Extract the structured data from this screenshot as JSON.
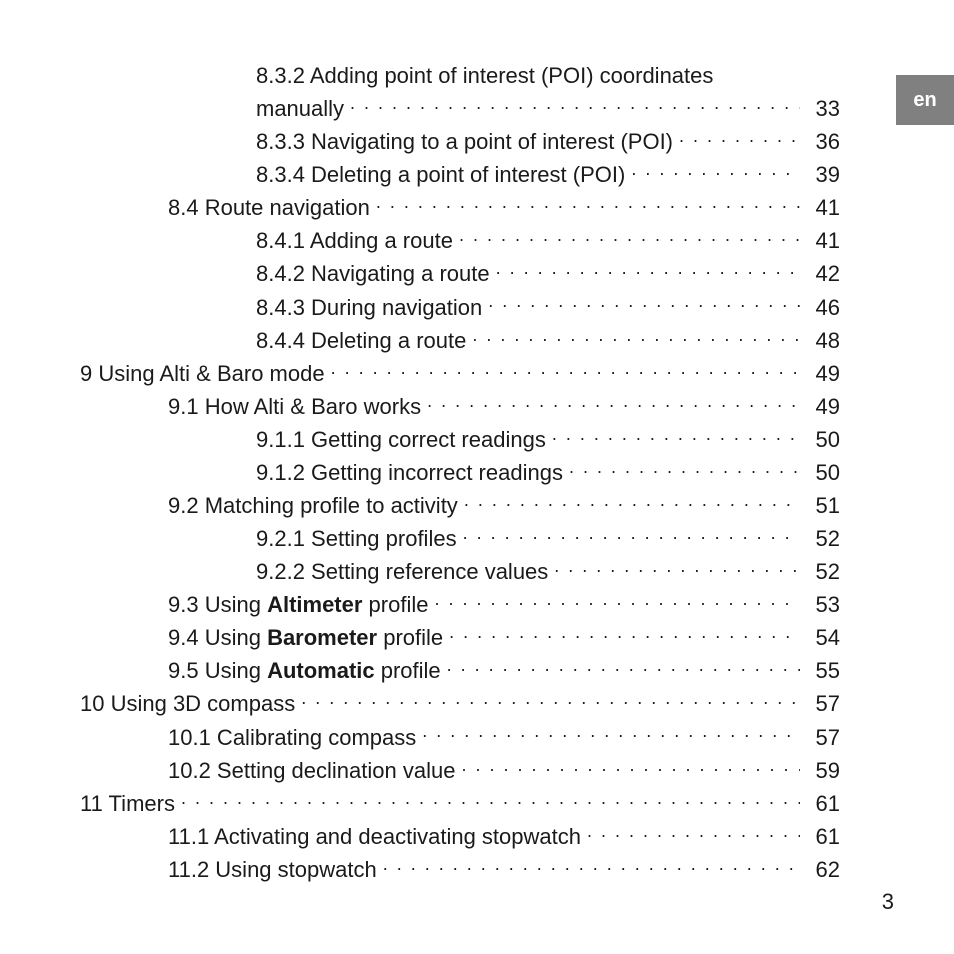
{
  "language_tab": "en",
  "page_number": "3",
  "toc": {
    "entries": [
      {
        "indent": 2,
        "label_html": "8.3.2 Adding point of interest (POI) coordinates",
        "page": "",
        "wrap": true
      },
      {
        "indent": 2,
        "continuation": true,
        "label_html": "manually",
        "page": "33"
      },
      {
        "indent": 2,
        "label_html": "8.3.3 Navigating to a point of interest (POI)",
        "page": "36"
      },
      {
        "indent": 2,
        "label_html": "8.3.4 Deleting a point of interest (POI)",
        "page": "39"
      },
      {
        "indent": 1,
        "label_html": "8.4 Route navigation",
        "page": "41"
      },
      {
        "indent": 2,
        "label_html": "8.4.1 Adding a route",
        "page": "41"
      },
      {
        "indent": 2,
        "label_html": "8.4.2 Navigating a route",
        "page": "42"
      },
      {
        "indent": 2,
        "label_html": "8.4.3 During navigation",
        "page": "46"
      },
      {
        "indent": 2,
        "label_html": "8.4.4 Deleting a route",
        "page": "48"
      },
      {
        "indent": 0,
        "label_html": "9 Using Alti & Baro mode",
        "page": "49"
      },
      {
        "indent": 1,
        "label_html": "9.1 How Alti & Baro works",
        "page": "49"
      },
      {
        "indent": 2,
        "label_html": "9.1.1 Getting correct readings",
        "page": "50"
      },
      {
        "indent": 2,
        "label_html": "9.1.2 Getting incorrect readings",
        "page": "50"
      },
      {
        "indent": 1,
        "label_html": "9.2 Matching profile to activity",
        "page": "51"
      },
      {
        "indent": 2,
        "label_html": "9.2.1 Setting profiles",
        "page": "52"
      },
      {
        "indent": 2,
        "label_html": "9.2.2 Setting reference values",
        "page": "52"
      },
      {
        "indent": 1,
        "label_html": "9.3 Using <b>Altimeter</b> profile",
        "page": "53"
      },
      {
        "indent": 1,
        "label_html": "9.4 Using <b>Barometer</b> profile",
        "page": "54"
      },
      {
        "indent": 1,
        "label_html": "9.5 Using <b>Automatic</b> profile",
        "page": "55"
      },
      {
        "indent": 0,
        "label_html": "10 Using 3D compass",
        "page": "57"
      },
      {
        "indent": 1,
        "label_html": "10.1 Calibrating compass",
        "page": "57"
      },
      {
        "indent": 1,
        "label_html": "10.2 Setting declination value",
        "page": "59"
      },
      {
        "indent": 0,
        "label_html": "11 Timers",
        "page": "61"
      },
      {
        "indent": 1,
        "label_html": "11.1 Activating and deactivating stopwatch",
        "page": "61"
      },
      {
        "indent": 1,
        "label_html": "11.2 Using stopwatch",
        "page": "62"
      }
    ]
  }
}
